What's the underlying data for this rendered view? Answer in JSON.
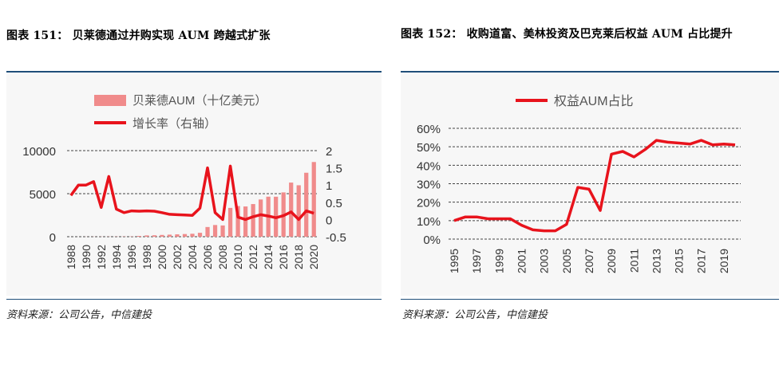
{
  "left": {
    "title": "图表 151： 贝莱德通过并购实现 AUM 跨越式扩张",
    "source": "资料来源：公司公告，中信建投",
    "legend_bar": "贝莱德AUM（十亿美元）",
    "legend_line": "增长率（右轴）",
    "bar_color": "#f08b8b",
    "line_color": "#e8131c"
  },
  "right": {
    "title": "图表 152： 收购道富、美林投资及巴克莱后权益 AUM 占比提升",
    "source": "资料来源：公司公告，中信建投",
    "legend_line": "权益AUM占比",
    "line_color": "#e8131c"
  },
  "chart_data": [
    {
      "type": "bar",
      "categories": [
        "1988",
        "1989",
        "1990",
        "1991",
        "1992",
        "1993",
        "1994",
        "1995",
        "1996",
        "1997",
        "1998",
        "1999",
        "2000",
        "2001",
        "2002",
        "2003",
        "2004",
        "2005",
        "2006",
        "2007",
        "2008",
        "2009",
        "2010",
        "2011",
        "2012",
        "2013",
        "2014",
        "2015",
        "2016",
        "2017",
        "2018",
        "2019",
        "2020"
      ],
      "x_tick_labels": [
        "1988",
        "1990",
        "1992",
        "1994",
        "1996",
        "1998",
        "2000",
        "2002",
        "2004",
        "2006",
        "2008",
        "2010",
        "2012",
        "2014",
        "2016",
        "2018",
        "2020"
      ],
      "series": [
        {
          "name": "贝莱德AUM（十亿美元）",
          "type": "bar",
          "axis": "left",
          "values": [
            2,
            4,
            8,
            12,
            15,
            17,
            20,
            25,
            30,
            90,
            150,
            165,
            205,
            238,
            273,
            309,
            342,
            453,
            1125,
            1357,
            1307,
            3346,
            3561,
            3513,
            3792,
            4324,
            4652,
            4645,
            5148,
            6288,
            5976,
            7430,
            8677
          ]
        },
        {
          "name": "增长率（右轴）",
          "type": "line",
          "axis": "right",
          "values": [
            0.7,
            1.0,
            1.0,
            1.1,
            0.35,
            1.25,
            0.3,
            0.2,
            0.25,
            0.24,
            0.25,
            0.24,
            0.2,
            0.15,
            0.14,
            0.13,
            0.12,
            0.33,
            1.5,
            0.2,
            0.0,
            1.55,
            0.07,
            0.0,
            0.08,
            0.14,
            0.1,
            0.05,
            0.11,
            0.22,
            0.0,
            0.25,
            0.18
          ]
        }
      ],
      "y_left_ticks": [
        "0",
        "5000",
        "10000"
      ],
      "y_left_lim": [
        0,
        10000
      ],
      "y_right_ticks": [
        "-0.5",
        "0",
        "0.5",
        "1",
        "1.5",
        "2"
      ],
      "y_right_lim": [
        -0.5,
        2
      ],
      "grid": "dashed-horizontal",
      "legend_position": "top"
    },
    {
      "type": "line",
      "x": [
        "1995",
        "1996",
        "1997",
        "1998",
        "1999",
        "2000",
        "2001",
        "2002",
        "2003",
        "2004",
        "2005",
        "2006",
        "2007",
        "2008",
        "2009",
        "2010",
        "2011",
        "2012",
        "2013",
        "2014",
        "2015",
        "2016",
        "2017",
        "2018",
        "2019",
        "2020"
      ],
      "x_tick_labels": [
        "1995",
        "1997",
        "1999",
        "2001",
        "2003",
        "2005",
        "2007",
        "2009",
        "2011",
        "2013",
        "2015",
        "2017",
        "2019"
      ],
      "series": [
        {
          "name": "权益AUM占比",
          "values": [
            0.1,
            0.12,
            0.12,
            0.11,
            0.11,
            0.11,
            0.075,
            0.05,
            0.045,
            0.045,
            0.08,
            0.28,
            0.27,
            0.155,
            0.46,
            0.475,
            0.445,
            0.485,
            0.535,
            0.525,
            0.52,
            0.515,
            0.535,
            0.51,
            0.515,
            0.51
          ]
        }
      ],
      "y_ticks": [
        "0%",
        "10%",
        "20%",
        "30%",
        "40%",
        "50%",
        "60%"
      ],
      "ylim": [
        0,
        0.6
      ],
      "grid": "dashed-horizontal",
      "legend_position": "top"
    }
  ]
}
